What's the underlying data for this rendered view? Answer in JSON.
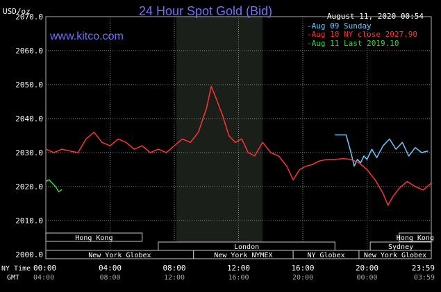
{
  "header": {
    "title": "24 Hour Spot Gold (Bid)",
    "datetime": "August 11, 2020 00:54",
    "unit": "USD/oz",
    "website": "www.kitco.com"
  },
  "legend": [
    {
      "label": "Aug 09 Sunday",
      "color": "#66ccff"
    },
    {
      "label": "Aug 10 NY close 2027.90",
      "color": "#ff3333"
    },
    {
      "label": "Aug 11 Last 2019.10",
      "color": "#33dd33"
    }
  ],
  "axis": {
    "ny_time_label": "NY Time",
    "gmt_label": "GMT",
    "ny_ticks": [
      "00:00",
      "04:00",
      "08:00",
      "12:00",
      "16:00",
      "20:00",
      "23:59"
    ],
    "gmt_ticks": [
      "04:00",
      "08:00",
      "12:00",
      "16:00",
      "20:00",
      "00:00",
      "03:59"
    ]
  },
  "sessions": [
    {
      "label": "Hong Kong",
      "row": 0
    },
    {
      "label": "London",
      "row": 1
    },
    {
      "label": "New York Globex",
      "row": 2
    },
    {
      "label": "New York NYMEX",
      "row": 2
    },
    {
      "label": "NY Globex",
      "row": 2
    },
    {
      "label": "Hong Kong",
      "row": 0
    },
    {
      "label": "Sydney",
      "row": 1
    },
    {
      "label": "New York Globex",
      "row": 2
    }
  ],
  "colors": {
    "background": "#000000",
    "grid": "#8a8a8a",
    "title": "#6f6fff",
    "website": "#6f6fff",
    "text": "#ffffff",
    "shade": "#1a1f1a",
    "aug09": "#66ccff",
    "aug10": "#ff3333",
    "aug11": "#33dd33"
  },
  "chart_data": {
    "type": "line",
    "title": "24 Hour Spot Gold (Bid)",
    "ylabel": "USD/oz",
    "xlabel": "NY Time",
    "ylim": [
      2000,
      2070
    ],
    "yticks": [
      "2000.0",
      "2010.0",
      "2020.0",
      "2030.0",
      "2040.0",
      "2050.0",
      "2060.0",
      "2070.0"
    ],
    "xlim": [
      0,
      24
    ],
    "grid": true,
    "legend_position": "top-right",
    "series": [
      {
        "name": "Aug 09 Sunday",
        "color": "#66ccff",
        "x": [
          18.0,
          18.7,
          19.0,
          19.2,
          19.4,
          19.6,
          19.8,
          20.0,
          20.3,
          20.6,
          21.0,
          21.4,
          21.8,
          22.2,
          22.6,
          23.0,
          23.4,
          23.8
        ],
        "y": [
          2035.2,
          2035.2,
          2030.0,
          2026.0,
          2028.0,
          2027.0,
          2029.0,
          2028.0,
          2031.0,
          2028.5,
          2032.0,
          2034.0,
          2031.0,
          2033.0,
          2029.0,
          2031.5,
          2030.0,
          2030.5
        ]
      },
      {
        "name": "Aug 10 NY close 2027.90",
        "color": "#ff3333",
        "x": [
          0,
          0.5,
          1.0,
          1.5,
          2.0,
          2.5,
          3.0,
          3.5,
          4.0,
          4.5,
          5.0,
          5.5,
          6.0,
          6.5,
          7.0,
          7.5,
          8.0,
          8.5,
          9.0,
          9.5,
          10.0,
          10.3,
          10.6,
          11.0,
          11.4,
          11.8,
          12.2,
          12.6,
          13.0,
          13.5,
          14.0,
          14.5,
          15.0,
          15.4,
          15.8,
          16.2,
          16.6,
          17.0,
          17.5,
          18.0,
          18.5,
          19.0,
          19.5,
          20.0,
          20.5,
          21.0,
          21.3,
          21.6,
          22.0,
          22.5,
          23.0,
          23.5,
          23.99
        ],
        "y": [
          2031.0,
          2030.0,
          2031.0,
          2030.5,
          2030.0,
          2034.0,
          2036.0,
          2033.0,
          2032.0,
          2034.0,
          2033.0,
          2031.0,
          2032.0,
          2030.0,
          2031.0,
          2030.0,
          2032.0,
          2034.0,
          2033.0,
          2036.0,
          2043.0,
          2049.5,
          2046.0,
          2041.0,
          2035.0,
          2033.0,
          2034.0,
          2030.0,
          2029.0,
          2033.0,
          2030.0,
          2029.0,
          2026.0,
          2022.0,
          2025.0,
          2026.0,
          2026.5,
          2027.5,
          2028.0,
          2028.0,
          2028.2,
          2028.0,
          2027.0,
          2025.0,
          2022.0,
          2018.0,
          2014.5,
          2017.0,
          2019.5,
          2021.5,
          2020.0,
          2019.0,
          2021.0
        ]
      },
      {
        "name": "Aug 11 Last 2019.10",
        "color": "#33dd33",
        "x": [
          0,
          0.2,
          0.4,
          0.6,
          0.8,
          1.0
        ],
        "y": [
          2021.5,
          2022.0,
          2021.0,
          2020.0,
          2018.5,
          2019.1
        ]
      }
    ]
  }
}
